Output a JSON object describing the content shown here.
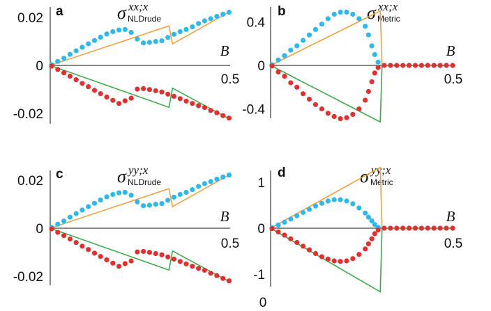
{
  "colors": {
    "upper_line": "#f0a040",
    "lower_line": "#3aaa4a",
    "upper_dots": "#30b8e8",
    "lower_dots": "#e03030"
  },
  "chart_data": [
    {
      "type": "scatter",
      "panel": "a",
      "symbol": "σ",
      "superscript": "xx;x",
      "subscript": "NLDrude",
      "xlabel": "B",
      "xlim": [
        0,
        0.5
      ],
      "ylim": [
        -0.025,
        0.025
      ],
      "xticks": [
        {
          "v": 0,
          "t": "0"
        },
        {
          "v": 0.5,
          "t": "0.5"
        }
      ],
      "yticks": [
        {
          "v": 0.02,
          "t": "0.02"
        },
        {
          "v": 0,
          "t": "0"
        },
        {
          "v": -0.02,
          "t": "-0.02"
        }
      ],
      "series": [
        {
          "role": "upper_line",
          "x": [
            0,
            0.33,
            0.34,
            0.5
          ],
          "y": [
            0,
            0.0165,
            0.009,
            0.0225
          ]
        },
        {
          "role": "lower_line",
          "x": [
            0,
            0.33,
            0.34,
            0.5
          ],
          "y": [
            0,
            -0.0175,
            -0.0095,
            -0.0225
          ]
        },
        {
          "role": "upper_dots",
          "x": [
            0.004,
            0.021,
            0.038,
            0.055,
            0.072,
            0.089,
            0.106,
            0.123,
            0.14,
            0.157,
            0.174,
            0.191,
            0.208,
            0.225,
            0.242,
            0.259,
            0.276,
            0.293,
            0.31,
            0.327,
            0.344,
            0.361,
            0.378,
            0.395,
            0.412,
            0.429,
            0.446,
            0.463,
            0.48,
            0.497
          ],
          "y": [
            0.0003,
            0.0017,
            0.003,
            0.0046,
            0.0061,
            0.0076,
            0.009,
            0.0104,
            0.0118,
            0.0131,
            0.0141,
            0.0148,
            0.015,
            0.0138,
            0.011,
            0.0094,
            0.0096,
            0.01,
            0.0103,
            0.0117,
            0.013,
            0.0141,
            0.015,
            0.0161,
            0.0175,
            0.0186,
            0.0195,
            0.0205,
            0.0214,
            0.0222
          ]
        },
        {
          "role": "lower_dots",
          "x": [
            0.004,
            0.021,
            0.038,
            0.055,
            0.072,
            0.089,
            0.106,
            0.123,
            0.14,
            0.157,
            0.174,
            0.191,
            0.208,
            0.225,
            0.242,
            0.259,
            0.276,
            0.293,
            0.31,
            0.327,
            0.344,
            0.361,
            0.378,
            0.395,
            0.412,
            0.429,
            0.446,
            0.463,
            0.48,
            0.497
          ],
          "y": [
            -0.0003,
            -0.0017,
            -0.0031,
            -0.0045,
            -0.006,
            -0.0075,
            -0.0089,
            -0.0104,
            -0.0118,
            -0.0132,
            -0.0146,
            -0.0159,
            -0.0148,
            -0.0137,
            -0.0099,
            -0.0097,
            -0.0101,
            -0.0106,
            -0.0111,
            -0.012,
            -0.0129,
            -0.0139,
            -0.0149,
            -0.0159,
            -0.0168,
            -0.0176,
            -0.0188,
            -0.0198,
            -0.021,
            -0.022
          ]
        }
      ]
    },
    {
      "type": "scatter",
      "panel": "b",
      "symbol": "σ",
      "superscript": "xx;x",
      "subscript": "Metric",
      "xlabel": "B",
      "xlim": [
        0,
        0.5
      ],
      "ylim": [
        -0.55,
        0.55
      ],
      "xticks": [
        {
          "v": 0,
          "t": "0"
        },
        {
          "v": 0.5,
          "t": "0.5"
        }
      ],
      "yticks": [
        {
          "v": 0.4,
          "t": "0.4"
        },
        {
          "v": 0,
          "t": "0"
        },
        {
          "v": -0.4,
          "t": "-0.4"
        }
      ],
      "series": [
        {
          "role": "upper_line",
          "x": [
            0,
            0.3,
            0.305,
            0.5
          ],
          "y": [
            0,
            0.5,
            0,
            0
          ]
        },
        {
          "role": "lower_line",
          "x": [
            0,
            0.3,
            0.305,
            0.5
          ],
          "y": [
            0,
            -0.52,
            0,
            0
          ]
        },
        {
          "role": "upper_dots",
          "x": [
            0.004,
            0.021,
            0.038,
            0.055,
            0.072,
            0.089,
            0.106,
            0.123,
            0.14,
            0.157,
            0.174,
            0.191,
            0.208,
            0.225,
            0.242,
            0.259,
            0.268,
            0.277,
            0.285,
            0.294,
            0.311,
            0.328,
            0.345,
            0.362,
            0.379,
            0.396,
            0.413,
            0.43,
            0.447,
            0.464,
            0.481,
            0.498
          ],
          "y": [
            0.005,
            0.05,
            0.09,
            0.14,
            0.18,
            0.23,
            0.28,
            0.33,
            0.38,
            0.43,
            0.47,
            0.49,
            0.49,
            0.47,
            0.43,
            0.36,
            0.28,
            0.18,
            0.1,
            0.03,
            0.0,
            0.0,
            0.0,
            0.0,
            0.0,
            0.0,
            0.0,
            0.0,
            0.0,
            0.0,
            0.0,
            0.0
          ]
        },
        {
          "role": "lower_dots",
          "x": [
            0.004,
            0.021,
            0.038,
            0.055,
            0.072,
            0.089,
            0.106,
            0.123,
            0.14,
            0.157,
            0.174,
            0.191,
            0.208,
            0.225,
            0.242,
            0.259,
            0.268,
            0.277,
            0.285,
            0.294,
            0.311,
            0.328,
            0.345,
            0.362,
            0.379,
            0.396,
            0.413,
            0.43,
            0.447,
            0.464,
            0.481,
            0.498
          ],
          "y": [
            -0.005,
            -0.06,
            -0.1,
            -0.16,
            -0.2,
            -0.26,
            -0.31,
            -0.36,
            -0.4,
            -0.44,
            -0.47,
            -0.49,
            -0.48,
            -0.45,
            -0.4,
            -0.32,
            -0.24,
            -0.15,
            -0.07,
            -0.02,
            0.0,
            0.0,
            0.0,
            0.0,
            0.0,
            0.0,
            0.0,
            0.0,
            0.0,
            0.0,
            0.0,
            0.0
          ]
        }
      ]
    },
    {
      "type": "scatter",
      "panel": "c",
      "symbol": "σ",
      "superscript": "yy;x",
      "subscript": "NLDrude",
      "xlabel": "B",
      "xlim": [
        0,
        0.5
      ],
      "ylim": [
        -0.025,
        0.025
      ],
      "xticks": [
        {
          "v": 0,
          "t": "0"
        },
        {
          "v": 0.5,
          "t": "0.5"
        }
      ],
      "yticks": [
        {
          "v": 0.02,
          "t": "0.02"
        },
        {
          "v": 0,
          "t": "0"
        },
        {
          "v": -0.02,
          "t": "-0.02"
        }
      ],
      "series": [
        {
          "role": "upper_line",
          "x": [
            0,
            0.33,
            0.34,
            0.5
          ],
          "y": [
            0,
            0.0165,
            0.009,
            0.0225
          ]
        },
        {
          "role": "lower_line",
          "x": [
            0,
            0.33,
            0.34,
            0.5
          ],
          "y": [
            0,
            -0.0175,
            -0.0095,
            -0.0225
          ]
        },
        {
          "role": "upper_dots",
          "x": [
            0.004,
            0.021,
            0.038,
            0.055,
            0.072,
            0.089,
            0.106,
            0.123,
            0.14,
            0.157,
            0.174,
            0.191,
            0.208,
            0.225,
            0.242,
            0.259,
            0.276,
            0.293,
            0.31,
            0.327,
            0.344,
            0.361,
            0.378,
            0.395,
            0.412,
            0.429,
            0.446,
            0.463,
            0.48,
            0.497
          ],
          "y": [
            0.0003,
            0.0017,
            0.003,
            0.0046,
            0.0061,
            0.0076,
            0.009,
            0.0104,
            0.0118,
            0.0131,
            0.0141,
            0.0148,
            0.015,
            0.0138,
            0.011,
            0.0094,
            0.0096,
            0.01,
            0.0103,
            0.0117,
            0.013,
            0.0141,
            0.015,
            0.0161,
            0.0175,
            0.0186,
            0.0195,
            0.0205,
            0.0214,
            0.0222
          ]
        },
        {
          "role": "lower_dots",
          "x": [
            0.004,
            0.021,
            0.038,
            0.055,
            0.072,
            0.089,
            0.106,
            0.123,
            0.14,
            0.157,
            0.174,
            0.191,
            0.208,
            0.225,
            0.242,
            0.259,
            0.276,
            0.293,
            0.31,
            0.327,
            0.344,
            0.361,
            0.378,
            0.395,
            0.412,
            0.429,
            0.446,
            0.463,
            0.48,
            0.497
          ],
          "y": [
            -0.0003,
            -0.0017,
            -0.0031,
            -0.0045,
            -0.006,
            -0.0075,
            -0.0089,
            -0.0104,
            -0.0118,
            -0.0132,
            -0.0146,
            -0.0159,
            -0.0148,
            -0.0137,
            -0.0099,
            -0.0097,
            -0.0101,
            -0.0106,
            -0.0111,
            -0.012,
            -0.0129,
            -0.0139,
            -0.0149,
            -0.0159,
            -0.0168,
            -0.0176,
            -0.0188,
            -0.0198,
            -0.021,
            -0.022
          ]
        }
      ]
    },
    {
      "type": "scatter",
      "panel": "d",
      "symbol": "σ",
      "superscript": "yy;x",
      "subscript": "Metric",
      "xlabel": "B",
      "xlim": [
        0,
        0.5
      ],
      "ylim": [
        -1.45,
        1.45
      ],
      "xticks": [
        {
          "v": 0,
          "t": "0"
        },
        {
          "v": 0.5,
          "t": "0.5"
        }
      ],
      "yticks": [
        {
          "v": 1,
          "t": "1"
        },
        {
          "v": 0,
          "t": "0"
        },
        {
          "v": -1,
          "t": "-1"
        }
      ],
      "extra_tick": "0",
      "series": [
        {
          "role": "upper_line",
          "x": [
            0,
            0.3,
            0.305,
            0.5
          ],
          "y": [
            0,
            1.32,
            0,
            0
          ]
        },
        {
          "role": "lower_line",
          "x": [
            0,
            0.3,
            0.305,
            0.5
          ],
          "y": [
            0,
            -1.38,
            0,
            0
          ]
        },
        {
          "role": "upper_dots",
          "x": [
            0.004,
            0.021,
            0.038,
            0.055,
            0.072,
            0.089,
            0.106,
            0.123,
            0.14,
            0.157,
            0.174,
            0.191,
            0.208,
            0.225,
            0.242,
            0.259,
            0.268,
            0.277,
            0.285,
            0.294,
            0.311,
            0.328,
            0.345,
            0.362,
            0.379,
            0.396,
            0.413,
            0.43,
            0.447,
            0.464,
            0.481,
            0.498
          ],
          "y": [
            0.01,
            0.07,
            0.13,
            0.2,
            0.27,
            0.34,
            0.41,
            0.48,
            0.54,
            0.59,
            0.62,
            0.62,
            0.59,
            0.53,
            0.44,
            0.33,
            0.24,
            0.16,
            0.08,
            0.02,
            0.0,
            0.0,
            0.0,
            0.0,
            0.0,
            0.0,
            0.0,
            0.0,
            0.0,
            0.0,
            0.0,
            0.0
          ]
        },
        {
          "role": "lower_dots",
          "x": [
            0.004,
            0.021,
            0.038,
            0.055,
            0.072,
            0.089,
            0.106,
            0.123,
            0.14,
            0.157,
            0.174,
            0.191,
            0.208,
            0.225,
            0.242,
            0.259,
            0.268,
            0.277,
            0.285,
            0.294,
            0.311,
            0.328,
            0.345,
            0.362,
            0.379,
            0.396,
            0.413,
            0.43,
            0.447,
            0.464,
            0.481,
            0.498
          ],
          "y": [
            -0.01,
            -0.08,
            -0.15,
            -0.23,
            -0.31,
            -0.39,
            -0.47,
            -0.55,
            -0.62,
            -0.67,
            -0.71,
            -0.72,
            -0.71,
            -0.66,
            -0.57,
            -0.45,
            -0.34,
            -0.23,
            -0.12,
            -0.04,
            0.0,
            0.0,
            0.0,
            0.0,
            0.0,
            0.0,
            0.0,
            0.0,
            0.0,
            0.0,
            0.0,
            0.0
          ]
        }
      ]
    }
  ]
}
